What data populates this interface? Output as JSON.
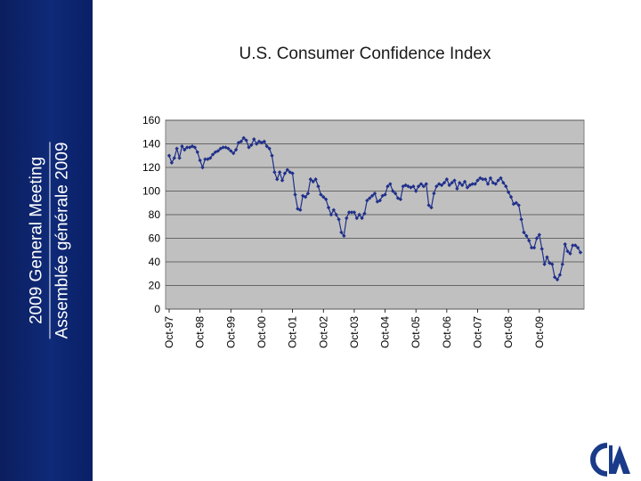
{
  "sidebar": {
    "line1": "2009 General Meeting",
    "line2": "Assemblée générale 2009"
  },
  "slide_title": "U.S. Consumer Confidence Index",
  "colors": {
    "sidebar": "#0f2a78",
    "plot_bg": "#c0c0c0",
    "series": "#1f2f8a",
    "logo": "#1a3a8a"
  },
  "logo": {
    "icon": "cia-logo-icon"
  },
  "chart_data": {
    "type": "line",
    "title": "U.S. Consumer Confidence Index",
    "xlabel": "",
    "ylabel": "",
    "ylim": [
      0,
      160
    ],
    "yticks": [
      0,
      20,
      40,
      60,
      80,
      100,
      120,
      140,
      160
    ],
    "xticks": [
      "Oct-97",
      "Oct-98",
      "Oct-99",
      "Oct-00",
      "Oct-01",
      "Oct-02",
      "Oct-03",
      "Oct-04",
      "Oct-05",
      "Oct-06",
      "Oct-07",
      "Oct-08",
      "Oct-09"
    ],
    "grid": true,
    "legend": "none",
    "series": [
      {
        "start": "Oct-97",
        "values": [
          130,
          124,
          128,
          136,
          128,
          138,
          135,
          137,
          137,
          138,
          137,
          133,
          126,
          120,
          127,
          127,
          128,
          131,
          133,
          134,
          136,
          137,
          137,
          136,
          134,
          132,
          135,
          141,
          142,
          145,
          143,
          137,
          139,
          144,
          140,
          142,
          141,
          142,
          138,
          136,
          130,
          116,
          110,
          116,
          109,
          115,
          118,
          116,
          115,
          97,
          85,
          84,
          96,
          95,
          98,
          110,
          108,
          110,
          104,
          97,
          95,
          93,
          86,
          80,
          84,
          80,
          76,
          65,
          62,
          77,
          82,
          82,
          82,
          77,
          80,
          77,
          81,
          92,
          94,
          96,
          98,
          91,
          92,
          96,
          97,
          104,
          106,
          100,
          98,
          94,
          93,
          104,
          105,
          104,
          103,
          104,
          100,
          104,
          106,
          104,
          106,
          88,
          86,
          98,
          104,
          106,
          105,
          107,
          110,
          105,
          107,
          109,
          102,
          107,
          105,
          108,
          103,
          105,
          106,
          106,
          109,
          111,
          110,
          110,
          106,
          111,
          107,
          106,
          109,
          111,
          107,
          104,
          99,
          95,
          89,
          90,
          88,
          76,
          65,
          62,
          58,
          52,
          52,
          60,
          63,
          51,
          38,
          44,
          39,
          38,
          27,
          25,
          29,
          38,
          55,
          49,
          47,
          54,
          54,
          52,
          48
        ]
      }
    ]
  }
}
